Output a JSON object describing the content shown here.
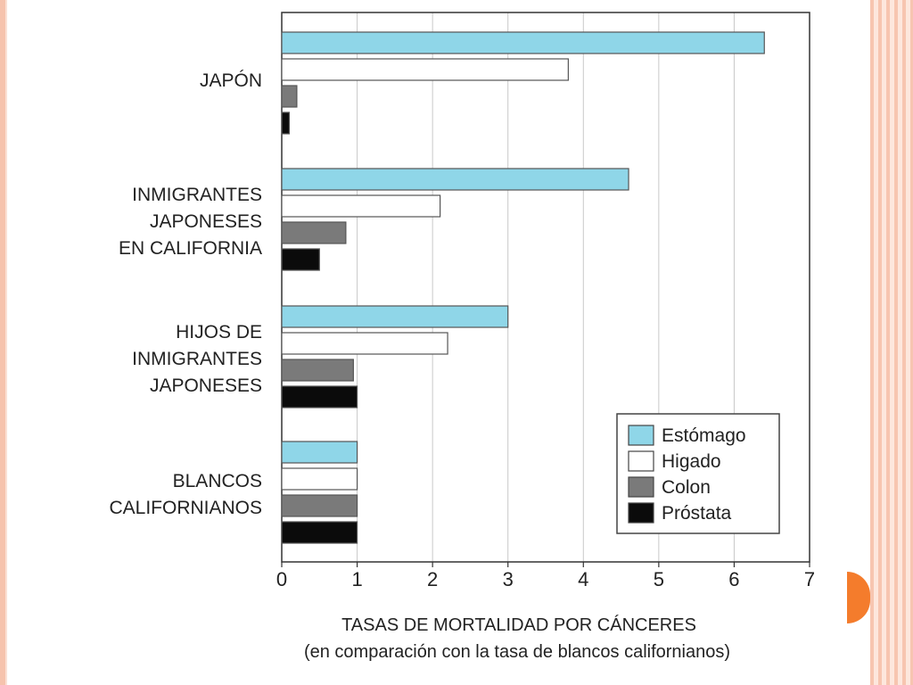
{
  "chart_data": {
    "type": "bar",
    "orientation": "horizontal",
    "title": "",
    "categories": [
      [
        "JAPÓN"
      ],
      [
        "INMIGRANTES",
        "JAPONESES",
        "EN CALIFORNIA"
      ],
      [
        "HIJOS DE",
        "INMIGRANTES",
        "JAPONESES"
      ],
      [
        "BLANCOS",
        "CALIFORNIANOS"
      ]
    ],
    "series": [
      {
        "name": "Estómago",
        "color": "#8fd6e8",
        "values": [
          6.4,
          4.6,
          3.0,
          1.0
        ]
      },
      {
        "name": "Higado",
        "color": "#ffffff",
        "values": [
          3.8,
          2.1,
          2.2,
          1.0
        ]
      },
      {
        "name": "Colon",
        "color": "#7a7a7a",
        "values": [
          0.2,
          0.85,
          0.95,
          1.0
        ]
      },
      {
        "name": "Próstata",
        "color": "#0b0b0b",
        "values": [
          0.1,
          0.5,
          1.0,
          1.0
        ]
      }
    ],
    "xlim": [
      0,
      7
    ],
    "xticks": [
      "0",
      "1",
      "2",
      "3",
      "4",
      "5",
      "6",
      "7"
    ],
    "xlabel": "TASAS DE MORTALIDAD POR CÁNCERES",
    "xlabel_sub": "(en comparación con la tasa de blancos californianos)",
    "grid": "vertical",
    "legend_position": "bottom-right"
  }
}
